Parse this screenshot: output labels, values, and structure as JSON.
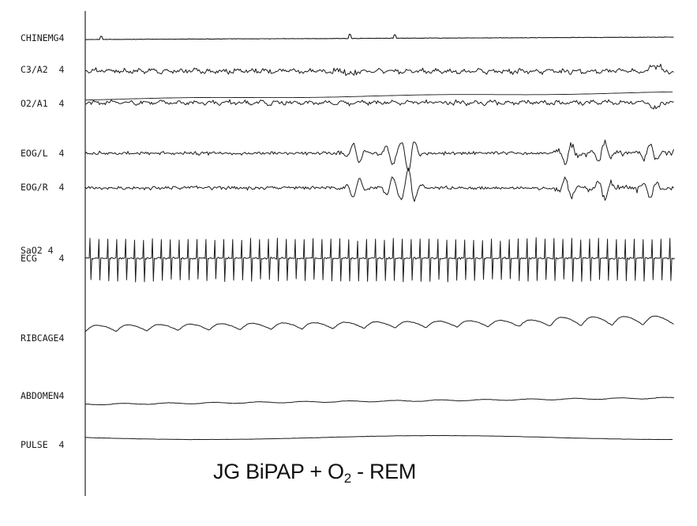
{
  "caption": {
    "prefix": "JG BiPAP + O",
    "subscript": "2",
    "suffix": " - REM"
  },
  "chart_data": {
    "type": "line",
    "title": "JG BiPAP + O2 - REM",
    "xlabel": "",
    "ylabel": "",
    "grid": false,
    "legend": "none",
    "channels": [
      {
        "id": "chinemg",
        "label": "CHINEMG",
        "gain": "4",
        "color": "#1a1a1a"
      },
      {
        "id": "c3a2",
        "label": "C3/A2",
        "gain": "4",
        "color": "#1a1a1a"
      },
      {
        "id": "o2a1",
        "label": "O2/A1",
        "gain": "4",
        "color": "#1a1a1a"
      },
      {
        "id": "eogl",
        "label": "EOG/L",
        "gain": "4",
        "color": "#1a1a1a"
      },
      {
        "id": "eogr",
        "label": "EOG/R",
        "gain": "4",
        "color": "#1a1a1a"
      },
      {
        "id": "sao2",
        "label": "SaO2",
        "gain": "4",
        "color": "#1a1a1a"
      },
      {
        "id": "ecg",
        "label": "ECG",
        "gain": "4",
        "color": "#1a1a1a"
      },
      {
        "id": "ribcage",
        "label": "RIBCAGE",
        "gain": "4",
        "color": "#1a1a1a"
      },
      {
        "id": "abdomen",
        "label": "ABDOMEN",
        "gain": "4",
        "color": "#1a1a1a"
      },
      {
        "id": "pulse",
        "label": "PULSE",
        "gain": "4",
        "color": "#1a1a1a"
      }
    ],
    "ecg_beats": 66,
    "ribcage_breaths": 19,
    "eog_rem_bursts": [
      0.46,
      0.52,
      0.55,
      0.82,
      0.88,
      0.96
    ]
  }
}
